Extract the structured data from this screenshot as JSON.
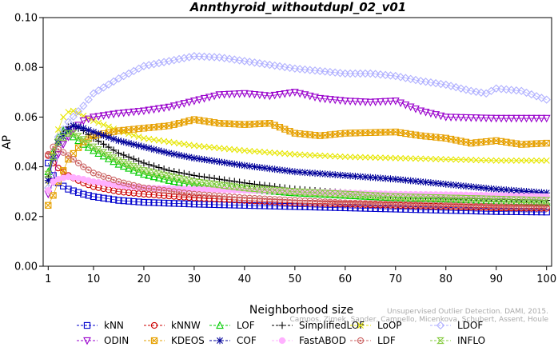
{
  "chart_data": {
    "type": "line",
    "title": "Annthyroid_withoutdupl_02_v01",
    "xlabel": "Neighborhood size",
    "ylabel": "AP",
    "xlim": [
      0,
      101
    ],
    "ylim": [
      0,
      0.1
    ],
    "xticks": [
      1,
      10,
      20,
      30,
      40,
      50,
      60,
      70,
      80,
      90,
      100
    ],
    "yticks": [
      0.0,
      0.02,
      0.04,
      0.06,
      0.08,
      0.1
    ],
    "ytick_labels": [
      "0.00",
      "0.02",
      "0.04",
      "0.06",
      "0.08",
      "0.10"
    ],
    "legend_position": "bottom",
    "credit": [
      "Campos, Zimek, Sander, Campello, Micenkova, Schubert, Assent, Houle",
      "Unsupervised Outlier Detection. DAMI, 2015."
    ],
    "series": [
      {
        "name": "kNN",
        "color": "#0000cc",
        "marker": "square",
        "points": [
          [
            1,
            0.0415
          ],
          [
            2,
            0.0365
          ],
          [
            3,
            0.0335
          ],
          [
            5,
            0.031
          ],
          [
            8,
            0.029
          ],
          [
            10,
            0.028
          ],
          [
            15,
            0.0265
          ],
          [
            20,
            0.0257
          ],
          [
            30,
            0.025
          ],
          [
            40,
            0.0245
          ],
          [
            50,
            0.024
          ],
          [
            60,
            0.0235
          ],
          [
            70,
            0.023
          ],
          [
            80,
            0.0225
          ],
          [
            90,
            0.022
          ],
          [
            100,
            0.0218
          ]
        ]
      },
      {
        "name": "kNNW",
        "color": "#cc0000",
        "marker": "circle",
        "points": [
          [
            1,
            0.0445
          ],
          [
            2,
            0.0415
          ],
          [
            3,
            0.0395
          ],
          [
            5,
            0.0365
          ],
          [
            8,
            0.0335
          ],
          [
            10,
            0.032
          ],
          [
            15,
            0.03
          ],
          [
            20,
            0.029
          ],
          [
            30,
            0.0275
          ],
          [
            40,
            0.0265
          ],
          [
            50,
            0.0255
          ],
          [
            60,
            0.025
          ],
          [
            70,
            0.0245
          ],
          [
            80,
            0.024
          ],
          [
            90,
            0.0235
          ],
          [
            100,
            0.0233
          ]
        ]
      },
      {
        "name": "LOF",
        "color": "#00cc00",
        "marker": "triangle",
        "points": [
          [
            1,
            0.038
          ],
          [
            2,
            0.046
          ],
          [
            3,
            0.052
          ],
          [
            4,
            0.0545
          ],
          [
            5,
            0.0535
          ],
          [
            6,
            0.052
          ],
          [
            8,
            0.049
          ],
          [
            10,
            0.0465
          ],
          [
            15,
            0.041
          ],
          [
            20,
            0.037
          ],
          [
            25,
            0.0345
          ],
          [
            30,
            0.0325
          ],
          [
            40,
            0.031
          ],
          [
            50,
            0.0295
          ],
          [
            60,
            0.0285
          ],
          [
            70,
            0.0275
          ],
          [
            80,
            0.027
          ],
          [
            90,
            0.0262
          ],
          [
            100,
            0.0258
          ]
        ]
      },
      {
        "name": "SimplifiedLOF",
        "color": "#000000",
        "marker": "plus",
        "points": [
          [
            1,
            0.036
          ],
          [
            2,
            0.045
          ],
          [
            3,
            0.051
          ],
          [
            4,
            0.054
          ],
          [
            5,
            0.056
          ],
          [
            6,
            0.0565
          ],
          [
            8,
            0.0545
          ],
          [
            10,
            0.0515
          ],
          [
            15,
            0.0455
          ],
          [
            20,
            0.0415
          ],
          [
            25,
            0.0385
          ],
          [
            30,
            0.0365
          ],
          [
            40,
            0.0335
          ],
          [
            50,
            0.031
          ],
          [
            60,
            0.0295
          ],
          [
            70,
            0.0285
          ],
          [
            80,
            0.0275
          ],
          [
            90,
            0.027
          ],
          [
            100,
            0.0265
          ]
        ]
      },
      {
        "name": "LoOP",
        "color": "#e6e600",
        "marker": "x",
        "points": [
          [
            1,
            0.033
          ],
          [
            2,
            0.045
          ],
          [
            3,
            0.055
          ],
          [
            4,
            0.06
          ],
          [
            5,
            0.062
          ],
          [
            6,
            0.0625
          ],
          [
            8,
            0.0605
          ],
          [
            10,
            0.0585
          ],
          [
            15,
            0.0545
          ],
          [
            20,
            0.0515
          ],
          [
            30,
            0.0485
          ],
          [
            40,
            0.0465
          ],
          [
            50,
            0.045
          ],
          [
            60,
            0.044
          ],
          [
            70,
            0.0435
          ],
          [
            80,
            0.043
          ],
          [
            90,
            0.0425
          ],
          [
            100,
            0.0425
          ]
        ]
      },
      {
        "name": "LDOF",
        "color": "#b0b0ff",
        "marker": "diamond",
        "points": [
          [
            1,
            0.0315
          ],
          [
            2,
            0.0435
          ],
          [
            3,
            0.052
          ],
          [
            5,
            0.058
          ],
          [
            8,
            0.0645
          ],
          [
            10,
            0.0695
          ],
          [
            15,
            0.0755
          ],
          [
            20,
            0.0805
          ],
          [
            25,
            0.0825
          ],
          [
            30,
            0.0845
          ],
          [
            35,
            0.084
          ],
          [
            40,
            0.0825
          ],
          [
            45,
            0.081
          ],
          [
            50,
            0.0795
          ],
          [
            55,
            0.0785
          ],
          [
            60,
            0.0775
          ],
          [
            65,
            0.0775
          ],
          [
            70,
            0.0765
          ],
          [
            75,
            0.0745
          ],
          [
            80,
            0.073
          ],
          [
            85,
            0.0705
          ],
          [
            88,
            0.0695
          ],
          [
            90,
            0.0715
          ],
          [
            95,
            0.0705
          ],
          [
            100,
            0.067
          ]
        ]
      },
      {
        "name": "ODIN",
        "color": "#9900cc",
        "marker": "triangle-down",
        "points": [
          [
            1,
            0.029
          ],
          [
            2,
            0.034
          ],
          [
            3,
            0.045
          ],
          [
            4,
            0.049
          ],
          [
            5,
            0.052
          ],
          [
            6,
            0.055
          ],
          [
            8,
            0.0585
          ],
          [
            10,
            0.06
          ],
          [
            15,
            0.0615
          ],
          [
            20,
            0.0625
          ],
          [
            25,
            0.064
          ],
          [
            30,
            0.0665
          ],
          [
            35,
            0.069
          ],
          [
            40,
            0.0695
          ],
          [
            45,
            0.0685
          ],
          [
            50,
            0.07
          ],
          [
            55,
            0.0675
          ],
          [
            60,
            0.0665
          ],
          [
            65,
            0.066
          ],
          [
            70,
            0.0665
          ],
          [
            75,
            0.0625
          ],
          [
            80,
            0.06
          ],
          [
            90,
            0.0595
          ],
          [
            100,
            0.0595
          ]
        ]
      },
      {
        "name": "KDEOS",
        "color": "#e6a000",
        "marker": "square-x",
        "points": [
          [
            1,
            0.0245
          ],
          [
            2,
            0.0285
          ],
          [
            3,
            0.034
          ],
          [
            5,
            0.043
          ],
          [
            8,
            0.05
          ],
          [
            10,
            0.0525
          ],
          [
            15,
            0.0545
          ],
          [
            20,
            0.0555
          ],
          [
            25,
            0.0565
          ],
          [
            30,
            0.059
          ],
          [
            35,
            0.0575
          ],
          [
            40,
            0.057
          ],
          [
            45,
            0.0575
          ],
          [
            50,
            0.0535
          ],
          [
            55,
            0.0525
          ],
          [
            60,
            0.0535
          ],
          [
            70,
            0.054
          ],
          [
            75,
            0.0525
          ],
          [
            80,
            0.0515
          ],
          [
            85,
            0.0495
          ],
          [
            90,
            0.0505
          ],
          [
            95,
            0.049
          ],
          [
            100,
            0.0495
          ]
        ]
      },
      {
        "name": "COF",
        "color": "#000099",
        "marker": "star",
        "points": [
          [
            1,
            0.0345
          ],
          [
            2,
            0.0435
          ],
          [
            3,
            0.0495
          ],
          [
            5,
            0.055
          ],
          [
            6,
            0.0565
          ],
          [
            8,
            0.0555
          ],
          [
            10,
            0.054
          ],
          [
            15,
            0.0505
          ],
          [
            20,
            0.048
          ],
          [
            25,
            0.0455
          ],
          [
            30,
            0.0435
          ],
          [
            40,
            0.0405
          ],
          [
            50,
            0.038
          ],
          [
            60,
            0.0365
          ],
          [
            70,
            0.035
          ],
          [
            80,
            0.033
          ],
          [
            90,
            0.031
          ],
          [
            100,
            0.0295
          ]
        ]
      },
      {
        "name": "FastABOD",
        "color": "#ffb0ff",
        "marker": "circle-filled",
        "points": [
          [
            1,
            0.0305
          ],
          [
            2,
            0.034
          ],
          [
            3,
            0.035
          ],
          [
            5,
            0.036
          ],
          [
            8,
            0.035
          ],
          [
            10,
            0.034
          ],
          [
            15,
            0.0325
          ],
          [
            20,
            0.0315
          ],
          [
            30,
            0.031
          ],
          [
            40,
            0.0305
          ],
          [
            50,
            0.03
          ],
          [
            60,
            0.0295
          ],
          [
            70,
            0.029
          ],
          [
            80,
            0.0288
          ],
          [
            90,
            0.0285
          ],
          [
            100,
            0.028
          ]
        ]
      },
      {
        "name": "LDF",
        "color": "#cc6666",
        "marker": "circle-dot",
        "points": [
          [
            1,
            0.045
          ],
          [
            2,
            0.048
          ],
          [
            3,
            0.047
          ],
          [
            5,
            0.0445
          ],
          [
            8,
            0.04
          ],
          [
            10,
            0.0375
          ],
          [
            15,
            0.034
          ],
          [
            20,
            0.0315
          ],
          [
            30,
            0.029
          ],
          [
            40,
            0.0275
          ],
          [
            50,
            0.0265
          ],
          [
            60,
            0.0255
          ],
          [
            70,
            0.025
          ],
          [
            80,
            0.0245
          ],
          [
            90,
            0.024
          ],
          [
            100,
            0.0238
          ]
        ]
      },
      {
        "name": "INFLO",
        "color": "#88cc44",
        "marker": "hourglass",
        "points": [
          [
            1,
            0.037
          ],
          [
            2,
            0.044
          ],
          [
            3,
            0.05
          ],
          [
            5,
            0.0535
          ],
          [
            6,
            0.0535
          ],
          [
            8,
            0.051
          ],
          [
            10,
            0.048
          ],
          [
            15,
            0.0425
          ],
          [
            20,
            0.0385
          ],
          [
            30,
            0.034
          ],
          [
            40,
            0.0315
          ],
          [
            50,
            0.03
          ],
          [
            60,
            0.029
          ],
          [
            70,
            0.028
          ],
          [
            80,
            0.0275
          ],
          [
            90,
            0.027
          ],
          [
            100,
            0.0265
          ]
        ]
      }
    ]
  }
}
